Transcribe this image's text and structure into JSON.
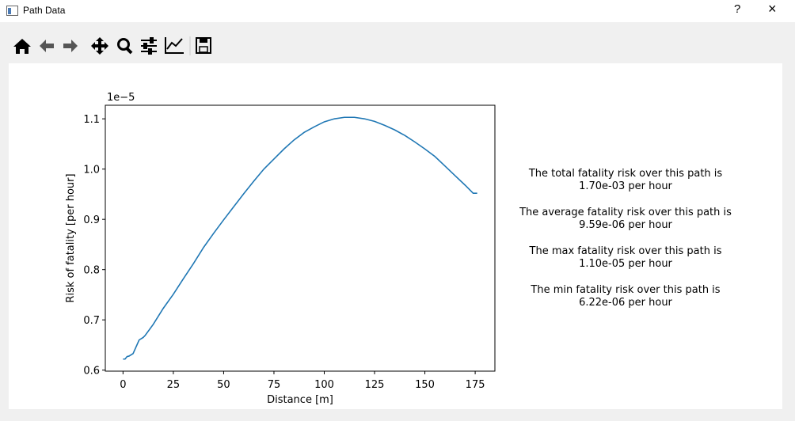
{
  "window": {
    "title": "Path Data",
    "help_button": "?",
    "close_button": "×"
  },
  "chart_data": {
    "type": "line",
    "xlabel": "Distance [m]",
    "ylabel": "Risk of fatality [per hour]",
    "y_offset_label": "1e−5",
    "x": [
      0,
      1,
      2,
      3,
      5,
      8,
      10,
      11,
      15,
      20,
      25,
      30,
      35,
      40,
      45,
      50,
      55,
      60,
      65,
      70,
      75,
      80,
      85,
      90,
      95,
      100,
      105,
      110,
      115,
      120,
      125,
      130,
      135,
      140,
      145,
      150,
      155,
      160,
      165,
      170,
      174,
      176
    ],
    "series": [
      {
        "color": "#1f77b4",
        "values": [
          0.622,
          0.622,
          0.627,
          0.628,
          0.633,
          0.66,
          0.665,
          0.669,
          0.691,
          0.723,
          0.751,
          0.782,
          0.812,
          0.844,
          0.872,
          0.899,
          0.925,
          0.951,
          0.976,
          1.0,
          1.02,
          1.04,
          1.058,
          1.073,
          1.084,
          1.094,
          1.1,
          1.103,
          1.103,
          1.1,
          1.095,
          1.087,
          1.078,
          1.067,
          1.054,
          1.04,
          1.025,
          1.006,
          0.987,
          0.968,
          0.952,
          0.952
        ]
      }
    ],
    "xlim": [
      -8.8,
      184.8
    ],
    "ylim": [
      0.598,
      1.127
    ],
    "xticks": [
      0,
      25,
      50,
      75,
      100,
      125,
      150,
      175
    ],
    "yticks": [
      0.6,
      0.7,
      0.8,
      0.9,
      {
        "value": 1.0,
        "label": "1.0"
      },
      1.1
    ]
  },
  "annotations": [
    [
      "The total fatality risk over this path is",
      "1.70e-03 per hour"
    ],
    [
      "The average fatality risk over this path is",
      "9.59e-06 per hour"
    ],
    [
      "The max fatality risk over this path is",
      "1.10e-05 per hour"
    ],
    [
      "The min fatality risk over this path is",
      "6.22e-06 per hour"
    ]
  ]
}
